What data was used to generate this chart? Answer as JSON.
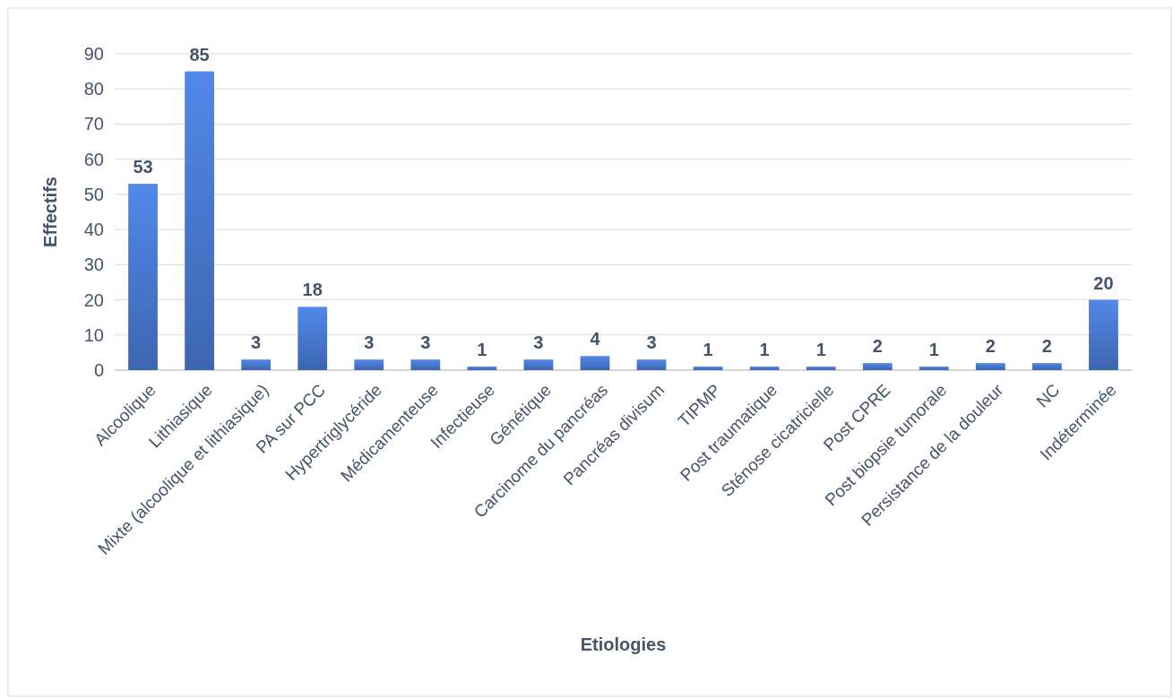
{
  "chart_data": {
    "type": "bar",
    "xlabel": "Etiologies",
    "ylabel": "Effectifs",
    "categories": [
      "Alcoolique",
      "Lithiasique",
      "Mixte (alcoolique et lithiasique)",
      "PA sur PCC",
      "Hypertriglycéride",
      "Médicamenteuse",
      "Infectieuse",
      "Génétique",
      "Carcinome du pancréas",
      "Pancréas divisum",
      "TIPMP",
      "Post traumatique",
      "Sténose cicatricielle",
      "Post CPRE",
      "Post biopsie tumorale",
      "Persistance de la douleur",
      "NC",
      "Indéterminée"
    ],
    "values": [
      53,
      85,
      3,
      18,
      3,
      3,
      1,
      3,
      4,
      3,
      1,
      1,
      1,
      2,
      1,
      2,
      2,
      20
    ],
    "color": "#4472c4",
    "ylim": [
      0,
      90
    ],
    "yticks": [
      0,
      10,
      20,
      30,
      40,
      50,
      60,
      70,
      80,
      90
    ],
    "grid": "y",
    "data_labels": true
  }
}
